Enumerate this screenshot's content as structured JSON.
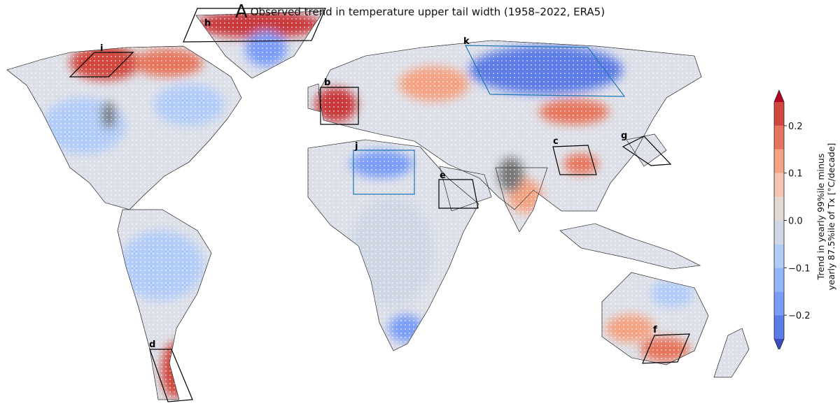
{
  "title": {
    "panel": "A",
    "text": "Observed trend in temperature upper tail width (1958–2022, ERA5)"
  },
  "map": {
    "stippling": "white dots over non-significant grid cells",
    "missing_color": "#777777",
    "regions": [
      {
        "label": "h",
        "box_color": "#000000"
      },
      {
        "label": "i",
        "box_color": "#000000"
      },
      {
        "label": "b",
        "box_color": "#000000"
      },
      {
        "label": "k",
        "box_color": "#1f77b4"
      },
      {
        "label": "j",
        "box_color": "#1f77b4"
      },
      {
        "label": "e",
        "box_color": "#000000"
      },
      {
        "label": "c",
        "box_color": "#000000"
      },
      {
        "label": "g",
        "box_color": "#000000"
      },
      {
        "label": "d",
        "box_color": "#000000"
      },
      {
        "label": "f",
        "box_color": "#000000"
      }
    ]
  },
  "colorbar": {
    "label_line1": "Trend in yearly 99%ile minus",
    "label_line2": "yearly 87.5%ile of Tx [°C/decade]",
    "range": [
      -0.25,
      0.25
    ],
    "extend": "both",
    "ticks": [
      "0.2",
      "0.1",
      "0.0",
      "−0.1",
      "−0.2"
    ],
    "tick_values": [
      0.2,
      0.1,
      0.0,
      -0.1,
      -0.2
    ],
    "bins": [
      "#5b7be6",
      "#7a9df8",
      "#93b5fe",
      "#b2ccf8",
      "#cfd7e5",
      "#e3d9d3",
      "#f3c4ae",
      "#f4a383",
      "#e7745b",
      "#d0473d"
    ],
    "under_color": "#3b4cc0",
    "over_color": "#b40426"
  }
}
